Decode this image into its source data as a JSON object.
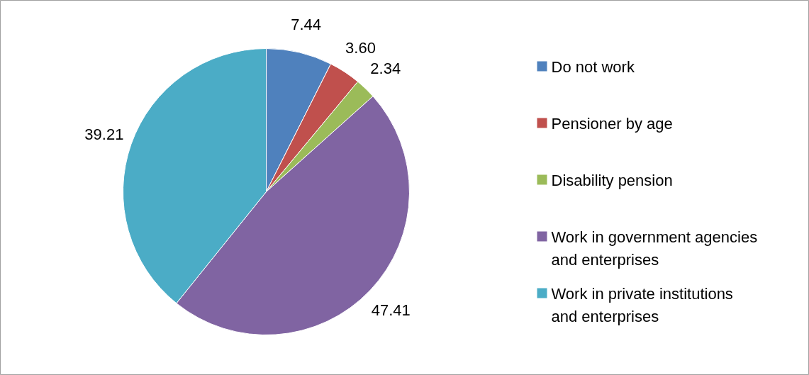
{
  "chart_data": {
    "type": "pie",
    "categories": [
      "Do not work",
      "Pensioner by age",
      "Disability pension",
      "Work in government agencies and enterprises",
      "Work in private institutions and enterprises"
    ],
    "values": [
      7.44,
      3.6,
      2.34,
      47.41,
      39.21
    ],
    "colors": [
      "#4f81bd",
      "#c0504d",
      "#9bbb59",
      "#8064a2",
      "#4bacc6"
    ],
    "value_labels": [
      "7.44",
      "3.60",
      "2.34",
      "47.41",
      "39.21"
    ],
    "legend": "right"
  }
}
